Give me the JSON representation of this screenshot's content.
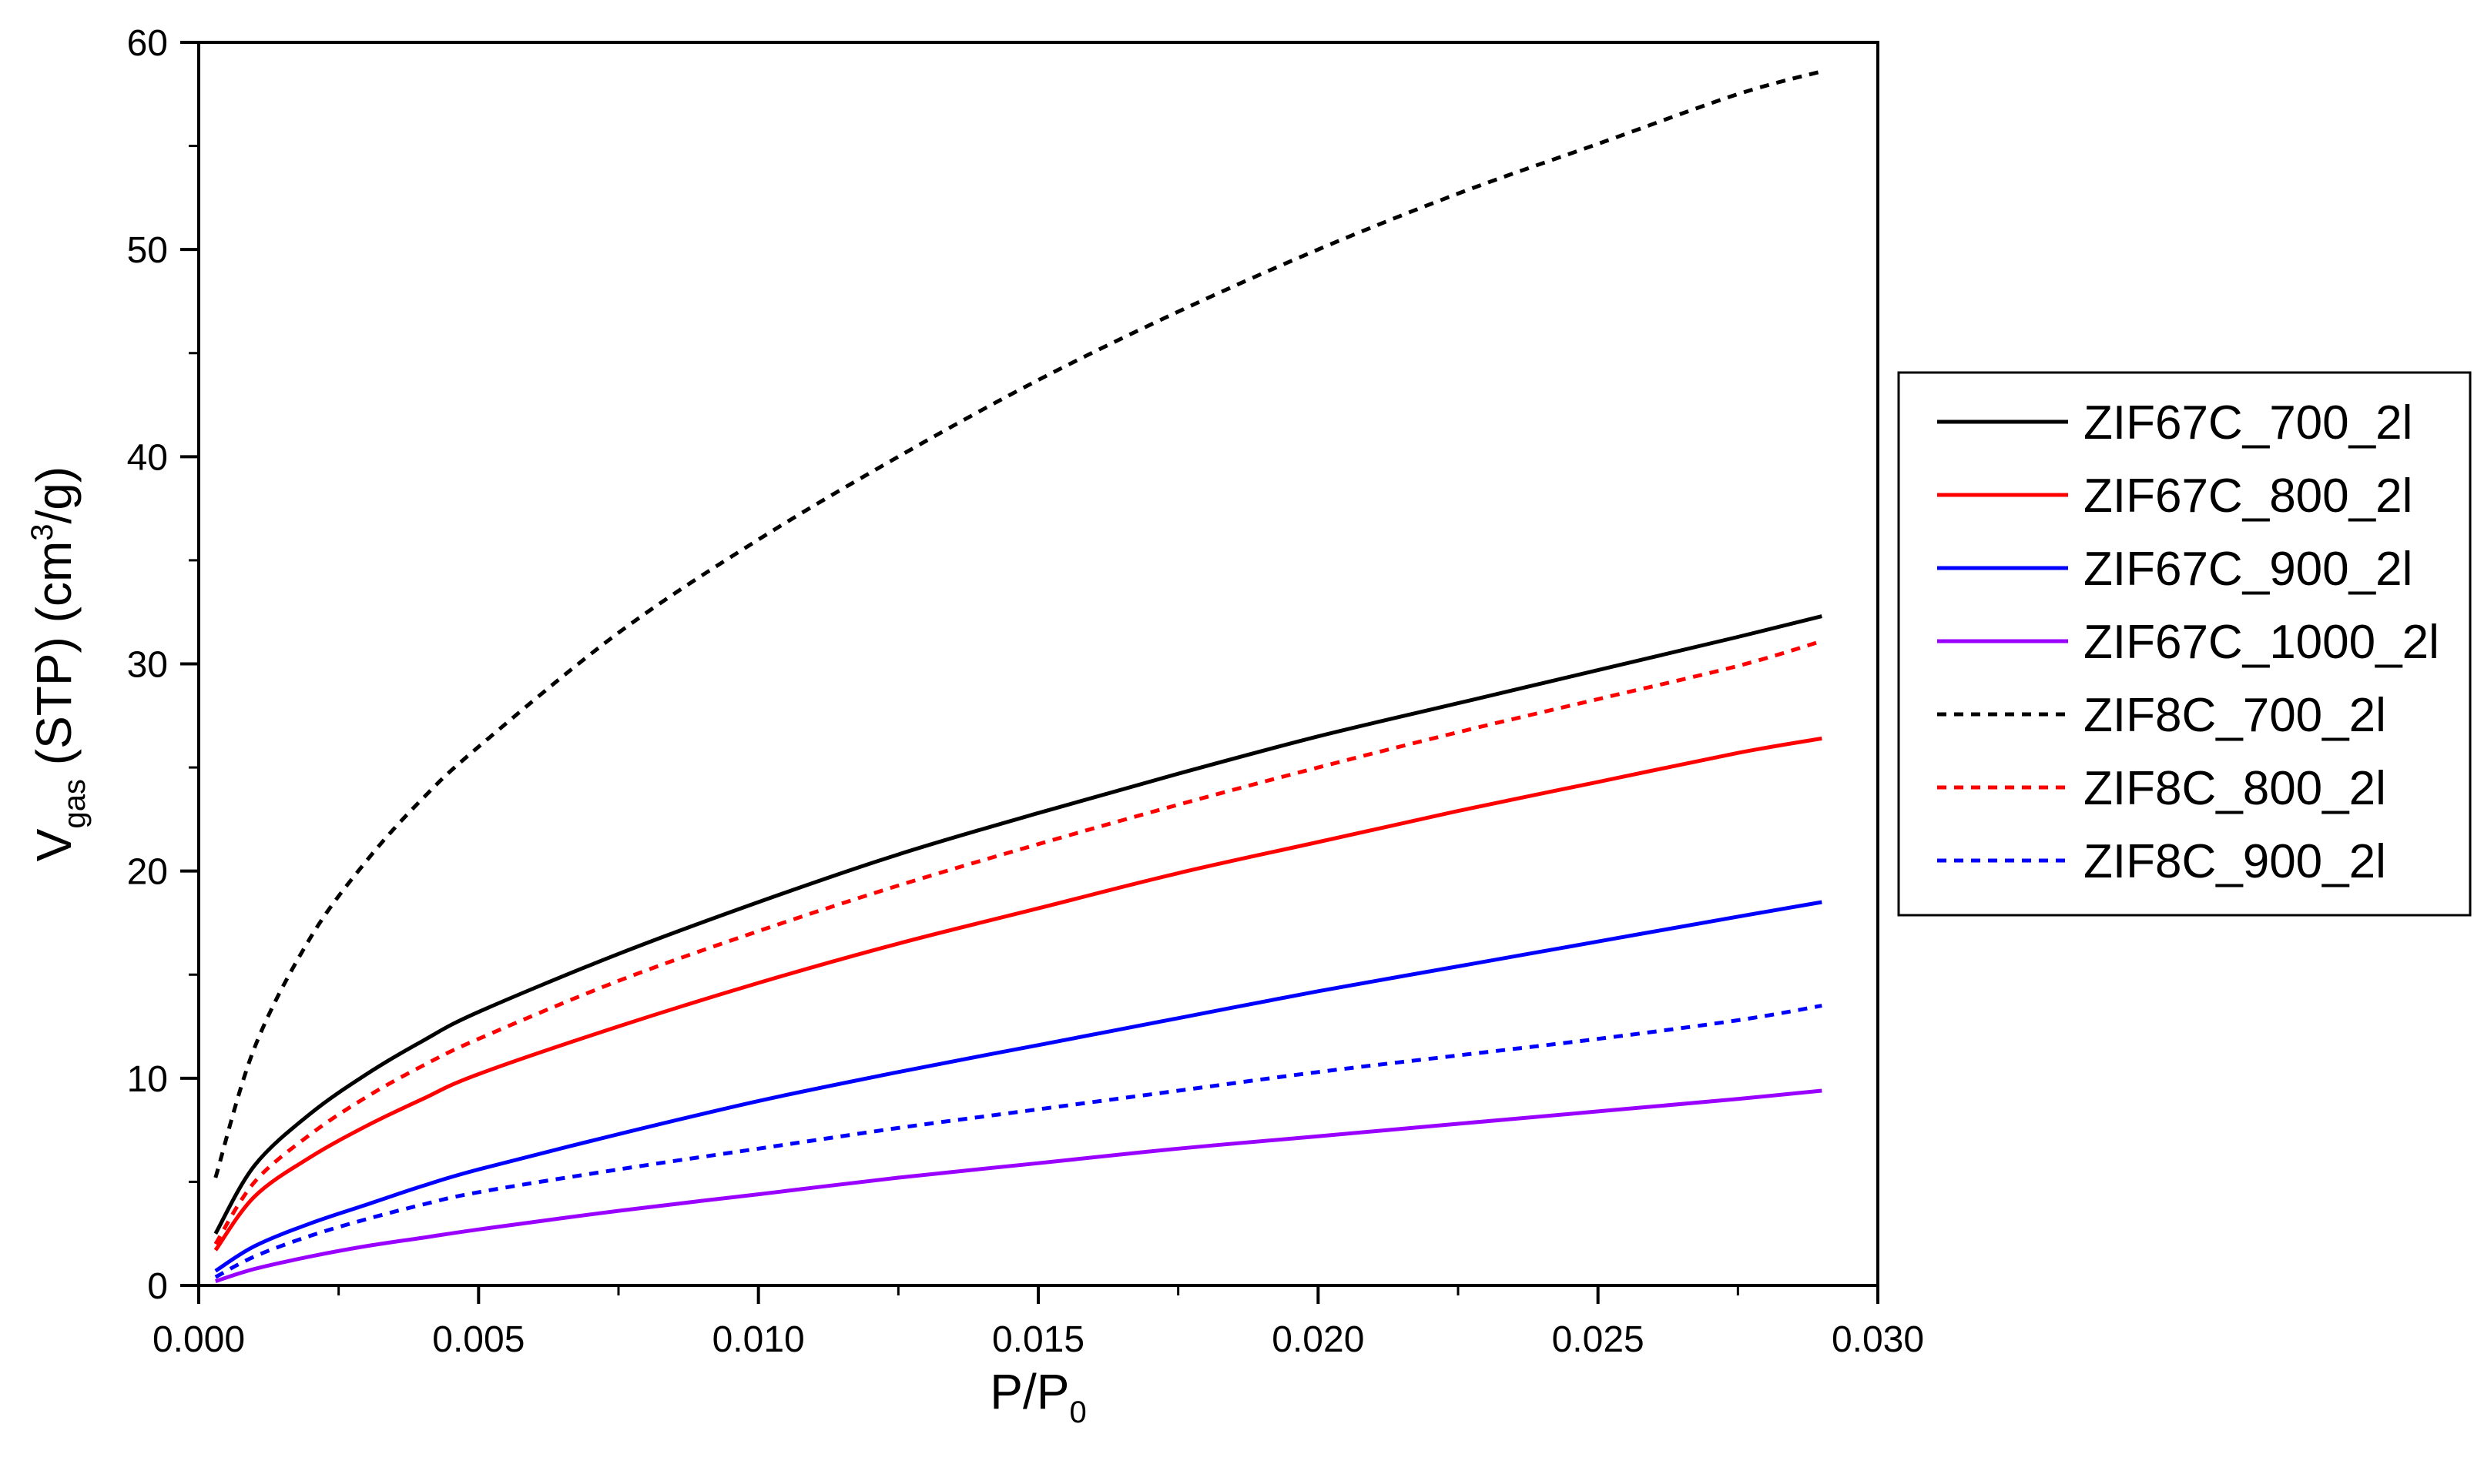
{
  "chart_data": {
    "type": "line",
    "xlabel": "P/P",
    "xlabel_subscript": "0",
    "ylabel_main": "V",
    "ylabel_subscript": "gas",
    "ylabel_rest": " (STP) (cm",
    "ylabel_superscript": "3",
    "ylabel_end": "/g)",
    "xlim": [
      0,
      0.03
    ],
    "ylim": [
      0,
      60
    ],
    "xticks": [
      0.0,
      0.005,
      0.01,
      0.015,
      0.02,
      0.025,
      0.03
    ],
    "xtick_labels": [
      "0.000",
      "0.005",
      "0.010",
      "0.015",
      "0.020",
      "0.025",
      "0.030"
    ],
    "yticks": [
      0,
      10,
      20,
      30,
      40,
      50,
      60
    ],
    "ytick_labels": [
      "0",
      "10",
      "20",
      "30",
      "40",
      "50",
      "60"
    ],
    "grid": false,
    "legend_position": "right",
    "x": [
      0.0003,
      0.001,
      0.002,
      0.003,
      0.004,
      0.005,
      0.0075,
      0.01,
      0.0125,
      0.015,
      0.0175,
      0.02,
      0.0225,
      0.025,
      0.0275,
      0.029
    ],
    "series": [
      {
        "name": "ZIF67C_700_2l",
        "color": "#000000",
        "dash": "solid",
        "values": [
          2.5,
          5.8,
          8.3,
          10.2,
          11.8,
          13.2,
          16.0,
          18.5,
          20.8,
          22.8,
          24.7,
          26.5,
          28.1,
          29.7,
          31.3,
          32.3
        ]
      },
      {
        "name": "ZIF67C_800_2l",
        "color": "#ff0000",
        "dash": "solid",
        "values": [
          1.7,
          4.3,
          6.2,
          7.7,
          9.0,
          10.2,
          12.5,
          14.6,
          16.5,
          18.2,
          19.9,
          21.4,
          22.9,
          24.3,
          25.7,
          26.4
        ]
      },
      {
        "name": "ZIF67C_900_2l",
        "color": "#0000ff",
        "dash": "solid",
        "values": [
          0.7,
          1.9,
          3.0,
          3.9,
          4.8,
          5.6,
          7.3,
          8.9,
          10.3,
          11.6,
          12.9,
          14.2,
          15.4,
          16.6,
          17.8,
          18.5
        ]
      },
      {
        "name": "ZIF67C_1000_2l",
        "color": "#9900ff",
        "dash": "solid",
        "values": [
          0.2,
          0.8,
          1.4,
          1.9,
          2.3,
          2.7,
          3.6,
          4.4,
          5.2,
          5.9,
          6.6,
          7.2,
          7.8,
          8.4,
          9.0,
          9.4
        ]
      },
      {
        "name": "ZIF8C_700_2l",
        "color": "#000000",
        "dash": "dotted",
        "values": [
          5.2,
          11.5,
          16.8,
          20.5,
          23.5,
          26.0,
          31.5,
          36.0,
          40.0,
          43.7,
          47.0,
          50.0,
          52.7,
          55.1,
          57.5,
          58.6
        ]
      },
      {
        "name": "ZIF8C_800_2l",
        "color": "#ff0000",
        "dash": "dotted",
        "values": [
          2.0,
          5.0,
          7.3,
          9.1,
          10.6,
          11.9,
          14.7,
          17.1,
          19.3,
          21.3,
          23.2,
          25.0,
          26.7,
          28.3,
          29.9,
          31.1
        ]
      },
      {
        "name": "ZIF8C_900_2l",
        "color": "#0000ff",
        "dash": "dotted",
        "values": [
          0.4,
          1.4,
          2.4,
          3.2,
          3.9,
          4.5,
          5.6,
          6.6,
          7.6,
          8.5,
          9.4,
          10.3,
          11.1,
          11.9,
          12.8,
          13.5
        ]
      }
    ]
  }
}
